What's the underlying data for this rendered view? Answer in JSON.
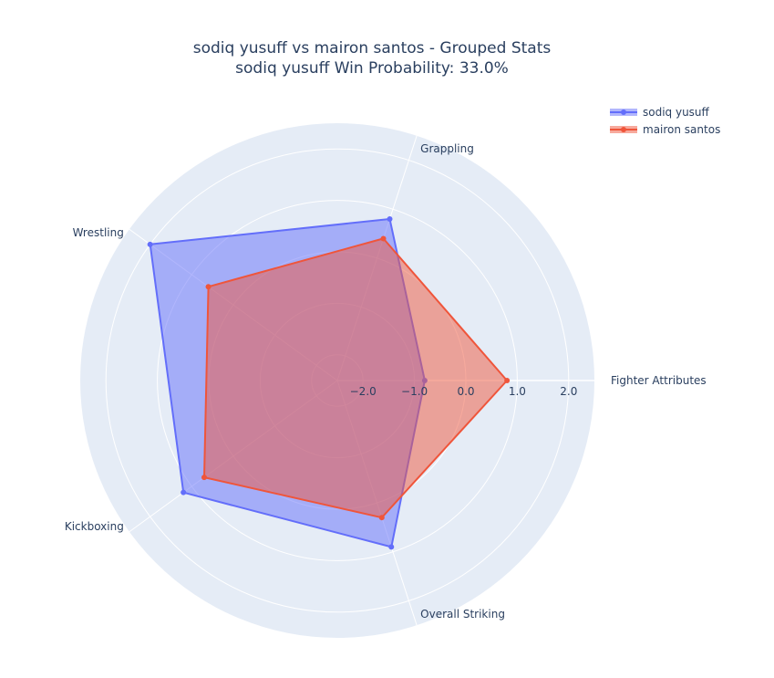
{
  "chart_data": {
    "type": "radar",
    "title": "sodiq yusuff vs mairon santos - Grouped Stats",
    "subtitle": "sodiq yusuff Win Probability: 33.0%",
    "categories": [
      "Fighter Attributes",
      "Overall Striking",
      "Kickboxing",
      "Wrestling",
      "Grappling"
    ],
    "radial_range": [
      -2.5,
      2.5
    ],
    "radial_ticks": [
      -2.0,
      -1.0,
      0.0,
      1.0,
      2.0
    ],
    "radial_tick_labels": [
      "−2.0",
      "−1.0",
      "0.0",
      "1.0",
      "2.0"
    ],
    "grid": true,
    "legend_position": "top-right",
    "series": [
      {
        "name": "sodiq yusuff",
        "values": [
          -0.8,
          0.9,
          1.2,
          2.0,
          0.8
        ],
        "color": "#636efa"
      },
      {
        "name": "mairon santos",
        "values": [
          0.8,
          0.3,
          0.7,
          0.6,
          0.4
        ],
        "color": "#ef553b"
      }
    ]
  }
}
